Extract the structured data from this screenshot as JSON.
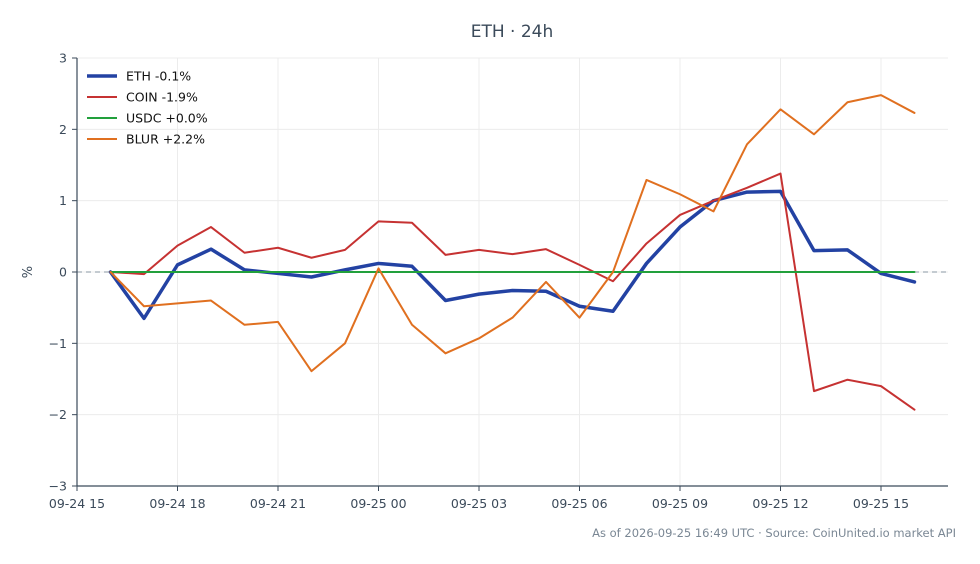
{
  "chart_data": {
    "type": "line",
    "title": "ETH · 24h",
    "ylabel": "%",
    "xlabel": "",
    "ylim": [
      -3,
      3
    ],
    "yticks": [
      3,
      2,
      1,
      0,
      -1,
      -2,
      -3
    ],
    "ytick_labels": [
      "3",
      "2",
      "1",
      "0",
      "−1",
      "−2",
      "−3"
    ],
    "xlim": [
      0,
      26
    ],
    "xticks": [
      0,
      3,
      6,
      9,
      12,
      15,
      18,
      21,
      24
    ],
    "xtick_labels": [
      "09-24 15",
      "09-24 18",
      "09-24 21",
      "09-25 00",
      "09-25 03",
      "09-25 06",
      "09-25 09",
      "09-25 12",
      "09-25 15"
    ],
    "x": [
      1,
      2,
      3,
      4,
      5,
      6,
      7,
      8,
      9,
      10,
      11,
      12,
      13,
      14,
      15,
      16,
      17,
      18,
      19,
      20,
      21,
      22,
      23,
      24,
      25
    ],
    "grid": true,
    "zero_line": true,
    "legend_position": "top-left",
    "series": [
      {
        "name": "ETH -0.1%",
        "color": "#2342a3",
        "width": 3.5,
        "values": [
          0,
          -0.65,
          0.1,
          0.32,
          0.03,
          -0.02,
          -0.07,
          0.03,
          0.12,
          0.08,
          -0.4,
          -0.31,
          -0.26,
          -0.27,
          -0.48,
          -0.55,
          0.12,
          0.63,
          1.0,
          1.12,
          1.13,
          0.3,
          0.31,
          -0.02,
          -0.14
        ]
      },
      {
        "name": "COIN -1.9%",
        "color": "#c63232",
        "width": 2,
        "values": [
          0,
          -0.03,
          0.37,
          0.63,
          0.27,
          0.34,
          0.2,
          0.31,
          0.71,
          0.69,
          0.24,
          0.31,
          0.25,
          0.32,
          0.1,
          -0.13,
          0.4,
          0.8,
          1.0,
          1.18,
          1.38,
          -1.67,
          -1.51,
          -1.6,
          -1.93
        ]
      },
      {
        "name": "USDC +0.0%",
        "color": "#22a03c",
        "width": 2,
        "values": [
          0,
          0,
          0,
          0,
          0,
          0,
          0,
          0,
          0,
          0,
          0,
          0,
          0,
          0,
          0,
          0,
          0,
          0,
          0,
          0,
          0,
          0,
          0,
          0,
          0
        ]
      },
      {
        "name": "BLUR +2.2%",
        "color": "#e07020",
        "width": 2,
        "values": [
          0,
          -0.48,
          -0.44,
          -0.4,
          -0.74,
          -0.7,
          -1.39,
          -1.0,
          0.05,
          -0.74,
          -1.14,
          -0.93,
          -0.64,
          -0.14,
          -0.64,
          0,
          1.29,
          1.09,
          0.85,
          1.79,
          2.28,
          1.93,
          2.38,
          2.48,
          2.23
        ]
      }
    ]
  },
  "footer": "As of 2026-09-25 16:49 UTC · Source: CoinUnited.io market API"
}
